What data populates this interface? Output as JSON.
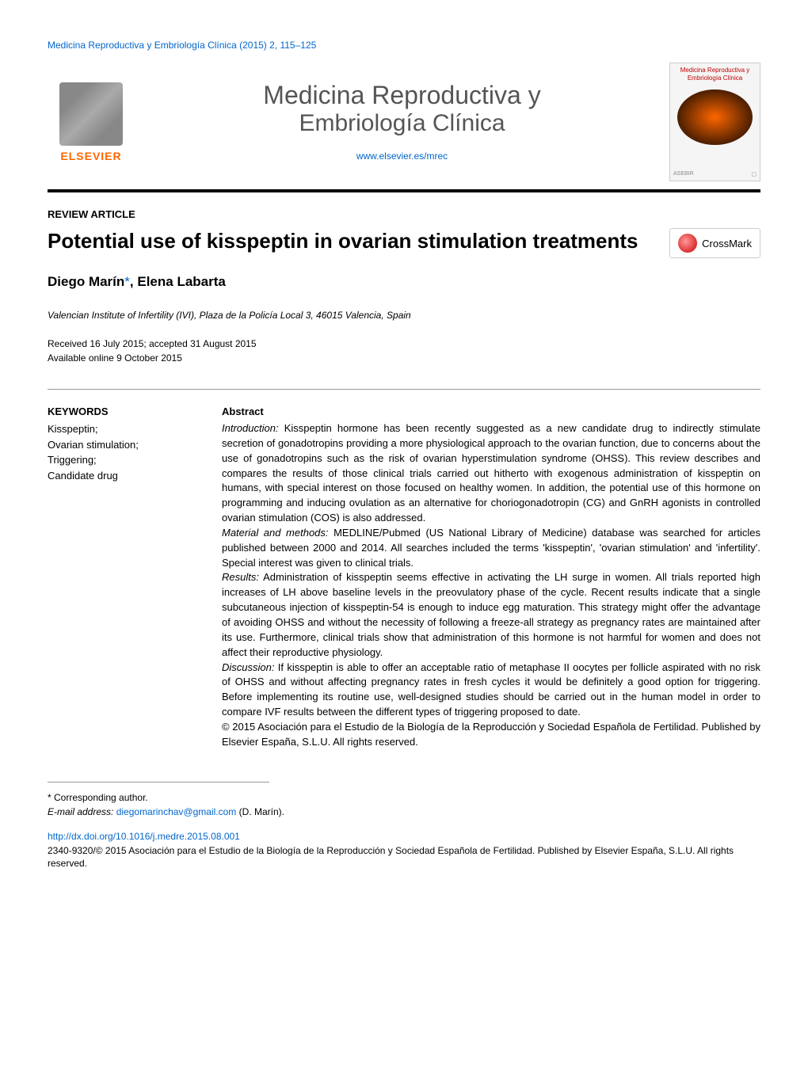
{
  "header_citation": "Medicina Reproductiva y Embriología Clínica (2015) 2, 115–125",
  "elsevier_label": "ELSEVIER",
  "journal_name_line1": "Medicina Reproductiva y",
  "journal_name_line2": "Embriología Clínica",
  "journal_url": "www.elsevier.es/mrec",
  "cover_title": "Medicina Reproductiva y Embriología Clínica",
  "cover_asebir": "ASEBIR",
  "article_type": "REVIEW ARTICLE",
  "article_title": "Potential use of kisspeptin in ovarian stimulation treatments",
  "crossmark_label": "CrossMark",
  "authors_html": "Diego Marín*, Elena Labarta",
  "author1": "Diego Marín",
  "author1_marker": "*",
  "author_sep": ", ",
  "author2": "Elena Labarta",
  "affiliation": "Valencian Institute of Infertility (IVI), Plaza de la Policía Local 3, 46015 Valencia, Spain",
  "received_line": "Received 16 July 2015; accepted 31 August 2015",
  "available_line": "Available online 9 October 2015",
  "keywords_heading": "KEYWORDS",
  "keywords": [
    "Kisspeptin;",
    "Ovarian stimulation;",
    "Triggering;",
    "Candidate drug"
  ],
  "abstract_heading": "Abstract",
  "abstract": {
    "intro_label": "Introduction:",
    "intro_text": " Kisspeptin hormone has been recently suggested as a new candidate drug to indirectly stimulate secretion of gonadotropins providing a more physiological approach to the ovarian function, due to concerns about the use of gonadotropins such as the risk of ovarian hyperstimulation syndrome (OHSS). This review describes and compares the results of those clinical trials carried out hitherto with exogenous administration of kisspeptin on humans, with special interest on those focused on healthy women. In addition, the potential use of this hormone on programming and inducing ovulation as an alternative for choriogonadotropin (CG) and GnRH agonists in controlled ovarian stimulation (COS) is also addressed.",
    "methods_label": "Material and methods:",
    "methods_text": " MEDLINE/Pubmed (US National Library of Medicine) database was searched for articles published between 2000 and 2014. All searches included the terms 'kisspeptin', 'ovarian stimulation' and 'infertility'. Special interest was given to clinical trials.",
    "results_label": "Results:",
    "results_text": " Administration of kisspeptin seems effective in activating the LH surge in women. All trials reported high increases of LH above baseline levels in the preovulatory phase of the cycle. Recent results indicate that a single subcutaneous injection of kisspeptin-54 is enough to induce egg maturation. This strategy might offer the advantage of avoiding OHSS and without the necessity of following a freeze-all strategy as pregnancy rates are maintained after its use. Furthermore, clinical trials show that administration of this hormone is not harmful for women and does not affect their reproductive physiology.",
    "discussion_label": "Discussion:",
    "discussion_text": " If kisspeptin is able to offer an acceptable ratio of metaphase II oocytes per follicle aspirated with no risk of OHSS and without affecting pregnancy rates in fresh cycles it would be definitely a good option for triggering. Before implementing its routine use, well-designed studies should be carried out in the human model in order to compare IVF results between the different types of triggering proposed to date.",
    "copyright": "© 2015 Asociación para el Estudio de la Biología de la Reproducción y Sociedad Española de Fertilidad. Published by Elsevier España, S.L.U. All rights reserved."
  },
  "corresponding_marker": "*",
  "corresponding_label": " Corresponding author.",
  "email_label": "E-mail address: ",
  "email": "diegomarinchav@gmail.com",
  "email_author": " (D. Marín).",
  "doi": "http://dx.doi.org/10.1016/j.medre.2015.08.001",
  "footer_copyright": "2340-9320/© 2015 Asociación para el Estudio de la Biología de la Reproducción y Sociedad Española de Fertilidad. Published by Elsevier España, S.L.U. All rights reserved.",
  "colors": {
    "link": "#0066cc",
    "elsevier_orange": "#ff6600",
    "text": "#000000",
    "border": "#999999"
  }
}
